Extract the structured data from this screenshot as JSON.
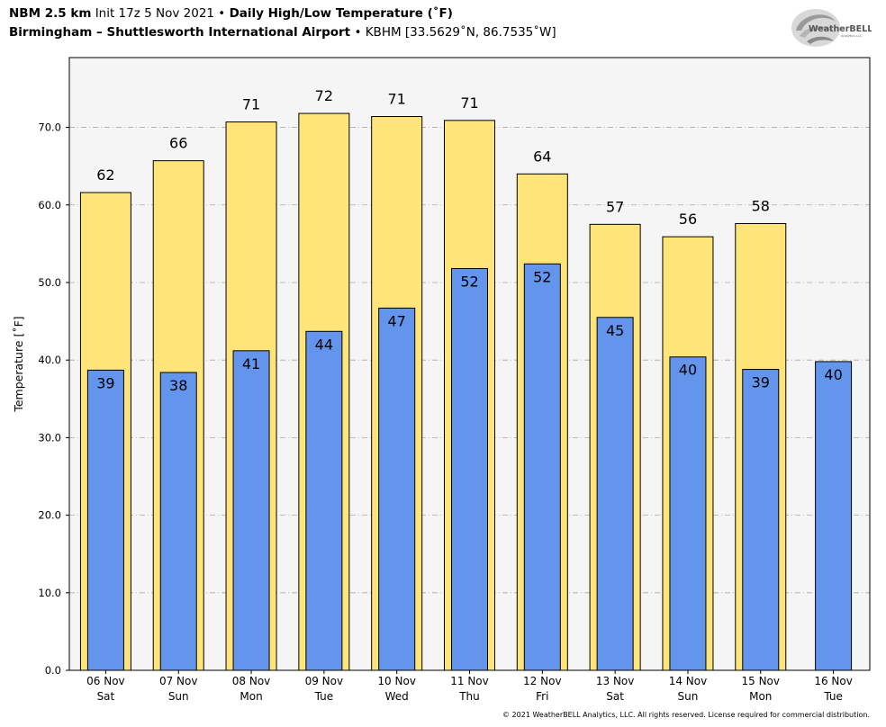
{
  "header": {
    "model": "NBM 2.5 km",
    "init": "Init 17z 5 Nov 2021",
    "bullet": "•",
    "product": "Daily High/Low Temperature (˚F)",
    "station": "Birmingham – Shuttlesworth International Airport",
    "station_meta": "KBHM [33.5629˚N, 86.7535˚W]"
  },
  "logo": {
    "text": "WeatherBELL",
    "sub": "Analytics LLC",
    "icon": "weatherbell-swirl-logo"
  },
  "footer": {
    "text": "© 2021 WeatherBELL Analytics, LLC. All rights reserved. License required for commercial distribution."
  },
  "colors": {
    "high": "#FFE47A",
    "low": "#6495ED",
    "plot_bg": "#F5F5F5",
    "grid": "#AAAAAA"
  },
  "chart_data": {
    "type": "bar",
    "title": "Daily High/Low Temperature (˚F)",
    "xlabel": "",
    "ylabel": "Temperature [˚F]",
    "ylim": [
      0,
      79
    ],
    "yticks": [
      0,
      10,
      20,
      30,
      40,
      50,
      60,
      70
    ],
    "ytick_labels": [
      "0.0",
      "10.0",
      "20.0",
      "30.0",
      "40.0",
      "50.0",
      "60.0",
      "70.0"
    ],
    "grid": true,
    "categories": [
      [
        "06 Nov",
        "Sat"
      ],
      [
        "07 Nov",
        "Sun"
      ],
      [
        "08 Nov",
        "Mon"
      ],
      [
        "09 Nov",
        "Tue"
      ],
      [
        "10 Nov",
        "Wed"
      ],
      [
        "11 Nov",
        "Thu"
      ],
      [
        "12 Nov",
        "Fri"
      ],
      [
        "13 Nov",
        "Sat"
      ],
      [
        "14 Nov",
        "Sun"
      ],
      [
        "15 Nov",
        "Mon"
      ],
      [
        "16 Nov",
        "Tue"
      ]
    ],
    "series": [
      {
        "name": "High",
        "values": [
          61.6,
          65.7,
          70.7,
          71.8,
          71.4,
          70.9,
          64.0,
          57.5,
          55.9,
          57.6,
          null
        ],
        "labels": [
          "62",
          "66",
          "71",
          "72",
          "71",
          "71",
          "64",
          "57",
          "56",
          "58",
          ""
        ]
      },
      {
        "name": "Low",
        "values": [
          38.7,
          38.4,
          41.2,
          43.7,
          46.7,
          51.8,
          52.4,
          45.5,
          40.4,
          38.8,
          39.8
        ],
        "labels": [
          "39",
          "38",
          "41",
          "44",
          "47",
          "52",
          "52",
          "45",
          "40",
          "39",
          "40"
        ]
      }
    ]
  }
}
